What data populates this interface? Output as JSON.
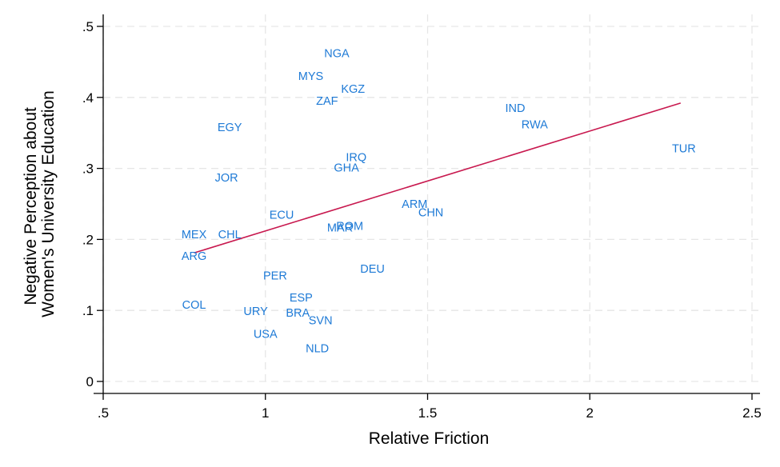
{
  "chart_data": {
    "type": "scatter",
    "xlabel": "Relative Friction",
    "ylabel_lines": [
      "Negative Perception about",
      "Women's University Education"
    ],
    "xlim": [
      0.5,
      2.5
    ],
    "ylim": [
      0,
      0.5
    ],
    "x_ticks": [
      {
        "value": 0.5,
        "label": ".5"
      },
      {
        "value": 1,
        "label": "1"
      },
      {
        "value": 1.5,
        "label": "1.5"
      },
      {
        "value": 2,
        "label": "2"
      },
      {
        "value": 2.5,
        "label": "2.5"
      }
    ],
    "y_ticks": [
      {
        "value": 0,
        "label": "0"
      },
      {
        "value": 0.1,
        "label": ".1"
      },
      {
        "value": 0.2,
        "label": ".2"
      },
      {
        "value": 0.3,
        "label": ".3"
      },
      {
        "value": 0.4,
        "label": ".4"
      },
      {
        "value": 0.5,
        "label": ".5"
      }
    ],
    "grid": true,
    "marker_label_color": "#1e7ad6",
    "fit_line_color": "#c8194f",
    "points": [
      {
        "label": "NGA",
        "x": 1.22,
        "y": 0.462
      },
      {
        "label": "MYS",
        "x": 1.14,
        "y": 0.43
      },
      {
        "label": "KGZ",
        "x": 1.27,
        "y": 0.412
      },
      {
        "label": "ZAF",
        "x": 1.19,
        "y": 0.395
      },
      {
        "label": "IND",
        "x": 1.77,
        "y": 0.385
      },
      {
        "label": "RWA",
        "x": 1.83,
        "y": 0.362
      },
      {
        "label": "EGY",
        "x": 0.89,
        "y": 0.358
      },
      {
        "label": "TUR",
        "x": 2.29,
        "y": 0.328
      },
      {
        "label": "IRQ",
        "x": 1.28,
        "y": 0.316
      },
      {
        "label": "GHA",
        "x": 1.25,
        "y": 0.301
      },
      {
        "label": "JOR",
        "x": 0.88,
        "y": 0.287
      },
      {
        "label": "ARM",
        "x": 1.46,
        "y": 0.25
      },
      {
        "label": "CHN",
        "x": 1.51,
        "y": 0.238
      },
      {
        "label": "ECU",
        "x": 1.05,
        "y": 0.235
      },
      {
        "label": "ROM",
        "x": 1.26,
        "y": 0.219
      },
      {
        "label": "MAR",
        "x": 1.23,
        "y": 0.217
      },
      {
        "label": "MEX",
        "x": 0.78,
        "y": 0.207
      },
      {
        "label": "CHL",
        "x": 0.89,
        "y": 0.207
      },
      {
        "label": "ARG",
        "x": 0.78,
        "y": 0.177
      },
      {
        "label": "DEU",
        "x": 1.33,
        "y": 0.159
      },
      {
        "label": "PER",
        "x": 1.03,
        "y": 0.149
      },
      {
        "label": "ESP",
        "x": 1.11,
        "y": 0.118
      },
      {
        "label": "COL",
        "x": 0.78,
        "y": 0.108
      },
      {
        "label": "URY",
        "x": 0.97,
        "y": 0.099
      },
      {
        "label": "BRA",
        "x": 1.1,
        "y": 0.097
      },
      {
        "label": "SVN",
        "x": 1.17,
        "y": 0.086
      },
      {
        "label": "USA",
        "x": 1.0,
        "y": 0.067
      },
      {
        "label": "NLD",
        "x": 1.16,
        "y": 0.047
      }
    ],
    "fit_line": {
      "x": [
        0.78,
        2.28
      ],
      "y": [
        0.181,
        0.392
      ]
    }
  }
}
